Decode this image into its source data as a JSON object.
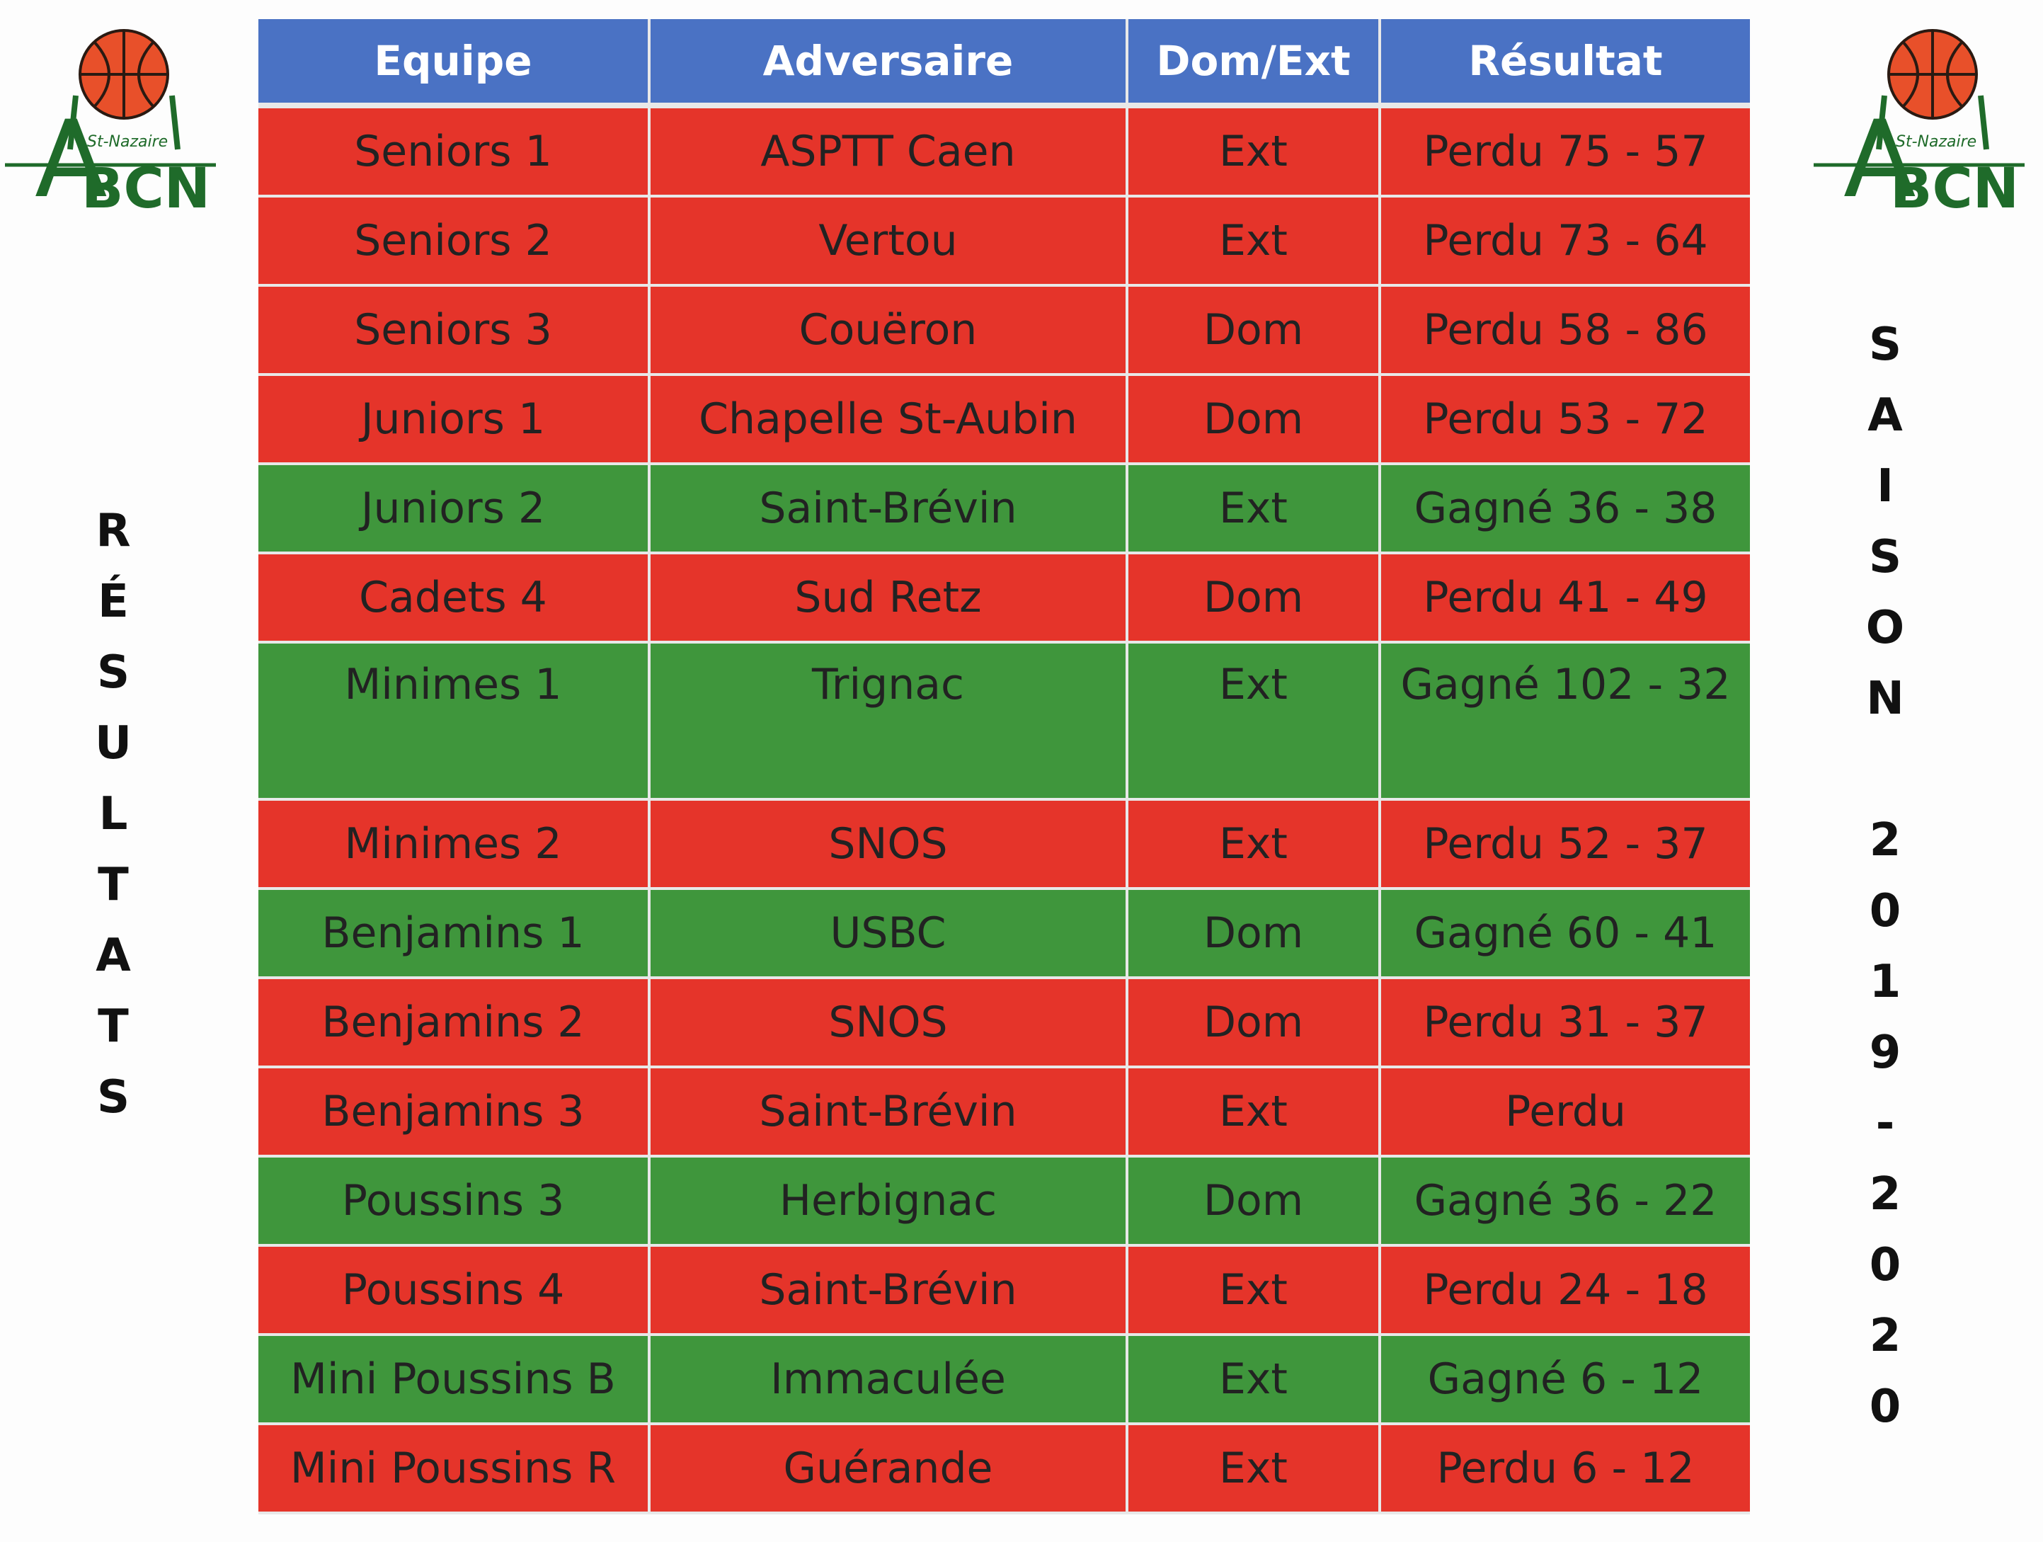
{
  "logo": {
    "text": "BCN",
    "letter_a": "A",
    "city": "St-Nazaire",
    "colors": {
      "ball": "#e8502a",
      "ball_lines": "#2a1a12",
      "frame": "#1f6b2a"
    }
  },
  "left_vertical": {
    "letters": [
      "R",
      "É",
      "S",
      "U",
      "L",
      "T",
      "A",
      "T",
      "S"
    ]
  },
  "right_vertical": {
    "word_letters": [
      "S",
      "A",
      "I",
      "S",
      "O",
      "N"
    ],
    "season_letters": [
      "2",
      "0",
      "1",
      "9",
      "-",
      "2",
      "0",
      "2",
      "0"
    ]
  },
  "table": {
    "colors": {
      "header": "#4a72c4",
      "lost": "#e5342a",
      "won": "#3f963c"
    },
    "headers": [
      "Equipe",
      "Adversaire",
      "Dom/Ext",
      "Résultat"
    ],
    "rows": [
      {
        "equipe": "Seniors 1",
        "adversaire": "ASPTT Caen",
        "lieu": "Ext",
        "resultat": "Perdu 75 - 57",
        "status": "lost"
      },
      {
        "equipe": "Seniors 2",
        "adversaire": "Vertou",
        "lieu": "Ext",
        "resultat": "Perdu 73 - 64",
        "status": "lost"
      },
      {
        "equipe": "Seniors 3",
        "adversaire": "Couëron",
        "lieu": "Dom",
        "resultat": "Perdu 58 - 86",
        "status": "lost"
      },
      {
        "equipe": "Juniors 1",
        "adversaire": "Chapelle St-Aubin",
        "lieu": "Dom",
        "resultat": "Perdu 53 - 72",
        "status": "lost"
      },
      {
        "equipe": "Juniors 2",
        "adversaire": "Saint-Brévin",
        "lieu": "Ext",
        "resultat": "Gagné 36 - 38",
        "status": "won"
      },
      {
        "equipe": "Cadets 4",
        "adversaire": "Sud Retz",
        "lieu": "Dom",
        "resultat": "Perdu  41 - 49",
        "status": "lost"
      },
      {
        "equipe": "Minimes 1",
        "adversaire": "Trignac",
        "lieu": "Ext",
        "resultat": "Gagné 102 - 32",
        "status": "won",
        "tall": true
      },
      {
        "equipe": "Minimes 2",
        "adversaire": "SNOS",
        "lieu": "Ext",
        "resultat": "Perdu 52 - 37",
        "status": "lost"
      },
      {
        "equipe": "Benjamins 1",
        "adversaire": "USBC",
        "lieu": "Dom",
        "resultat": "Gagné 60 - 41",
        "status": "won"
      },
      {
        "equipe": "Benjamins 2",
        "adversaire": "SNOS",
        "lieu": "Dom",
        "resultat": "Perdu 31 - 37",
        "status": "lost"
      },
      {
        "equipe": "Benjamins 3",
        "adversaire": "Saint-Brévin",
        "lieu": "Ext",
        "resultat": "Perdu",
        "status": "lost"
      },
      {
        "equipe": "Poussins 3",
        "adversaire": "Herbignac",
        "lieu": "Dom",
        "resultat": "Gagné 36 - 22",
        "status": "won"
      },
      {
        "equipe": "Poussins 4",
        "adversaire": "Saint-Brévin",
        "lieu": "Ext",
        "resultat": "Perdu 24 - 18",
        "status": "lost"
      },
      {
        "equipe": "Mini Poussins B",
        "adversaire": "Immaculée",
        "lieu": "Ext",
        "resultat": "Gagné 6 - 12",
        "status": "won"
      },
      {
        "equipe": "Mini Poussins R",
        "adversaire": "Guérande",
        "lieu": "Ext",
        "resultat": "Perdu 6 - 12",
        "status": "lost"
      }
    ]
  }
}
